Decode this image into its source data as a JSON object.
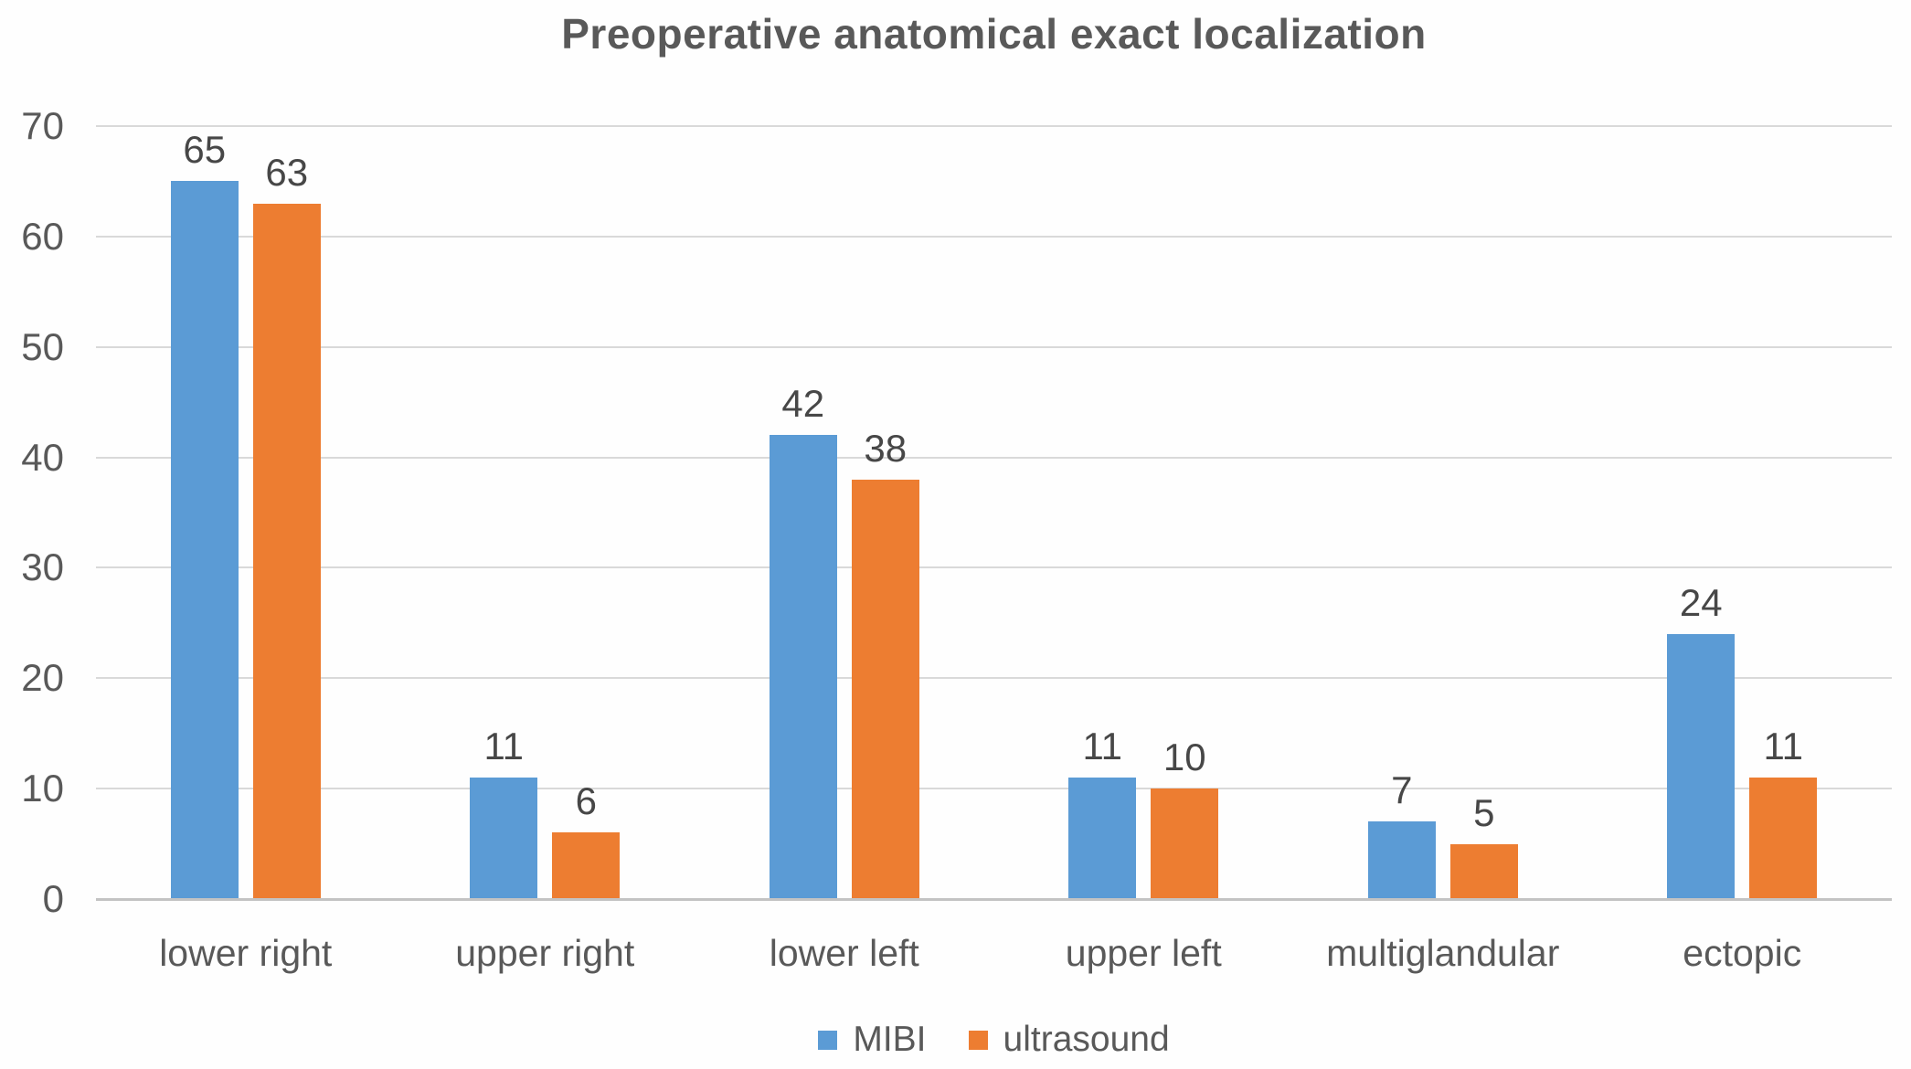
{
  "chart_data": {
    "type": "bar",
    "title": "Preoperative anatomical exact localization",
    "categories": [
      "lower right",
      "upper right",
      "lower left",
      "upper left",
      "multiglandular",
      "ectopic"
    ],
    "series": [
      {
        "name": "MIBI",
        "color": "#5B9BD5",
        "values": [
          65,
          11,
          42,
          11,
          7,
          24
        ]
      },
      {
        "name": "ultrasound",
        "color": "#ED7D31",
        "values": [
          63,
          6,
          38,
          10,
          5,
          11
        ]
      }
    ],
    "xlabel": "",
    "ylabel": "",
    "ylim": [
      0,
      70
    ],
    "yticks": [
      0,
      10,
      20,
      30,
      40,
      50,
      60,
      70
    ],
    "grid": true,
    "data_labels": true,
    "legend_position": "bottom"
  },
  "colors": {
    "mibi": "#5B9BD5",
    "ultrasound": "#ED7D31",
    "title_text": "#595959",
    "axis_text": "#595959",
    "value_label_text": "#474747",
    "gridline": "#d9d9d9",
    "axis_line": "#c3c3c3",
    "background": "#fefefe"
  }
}
